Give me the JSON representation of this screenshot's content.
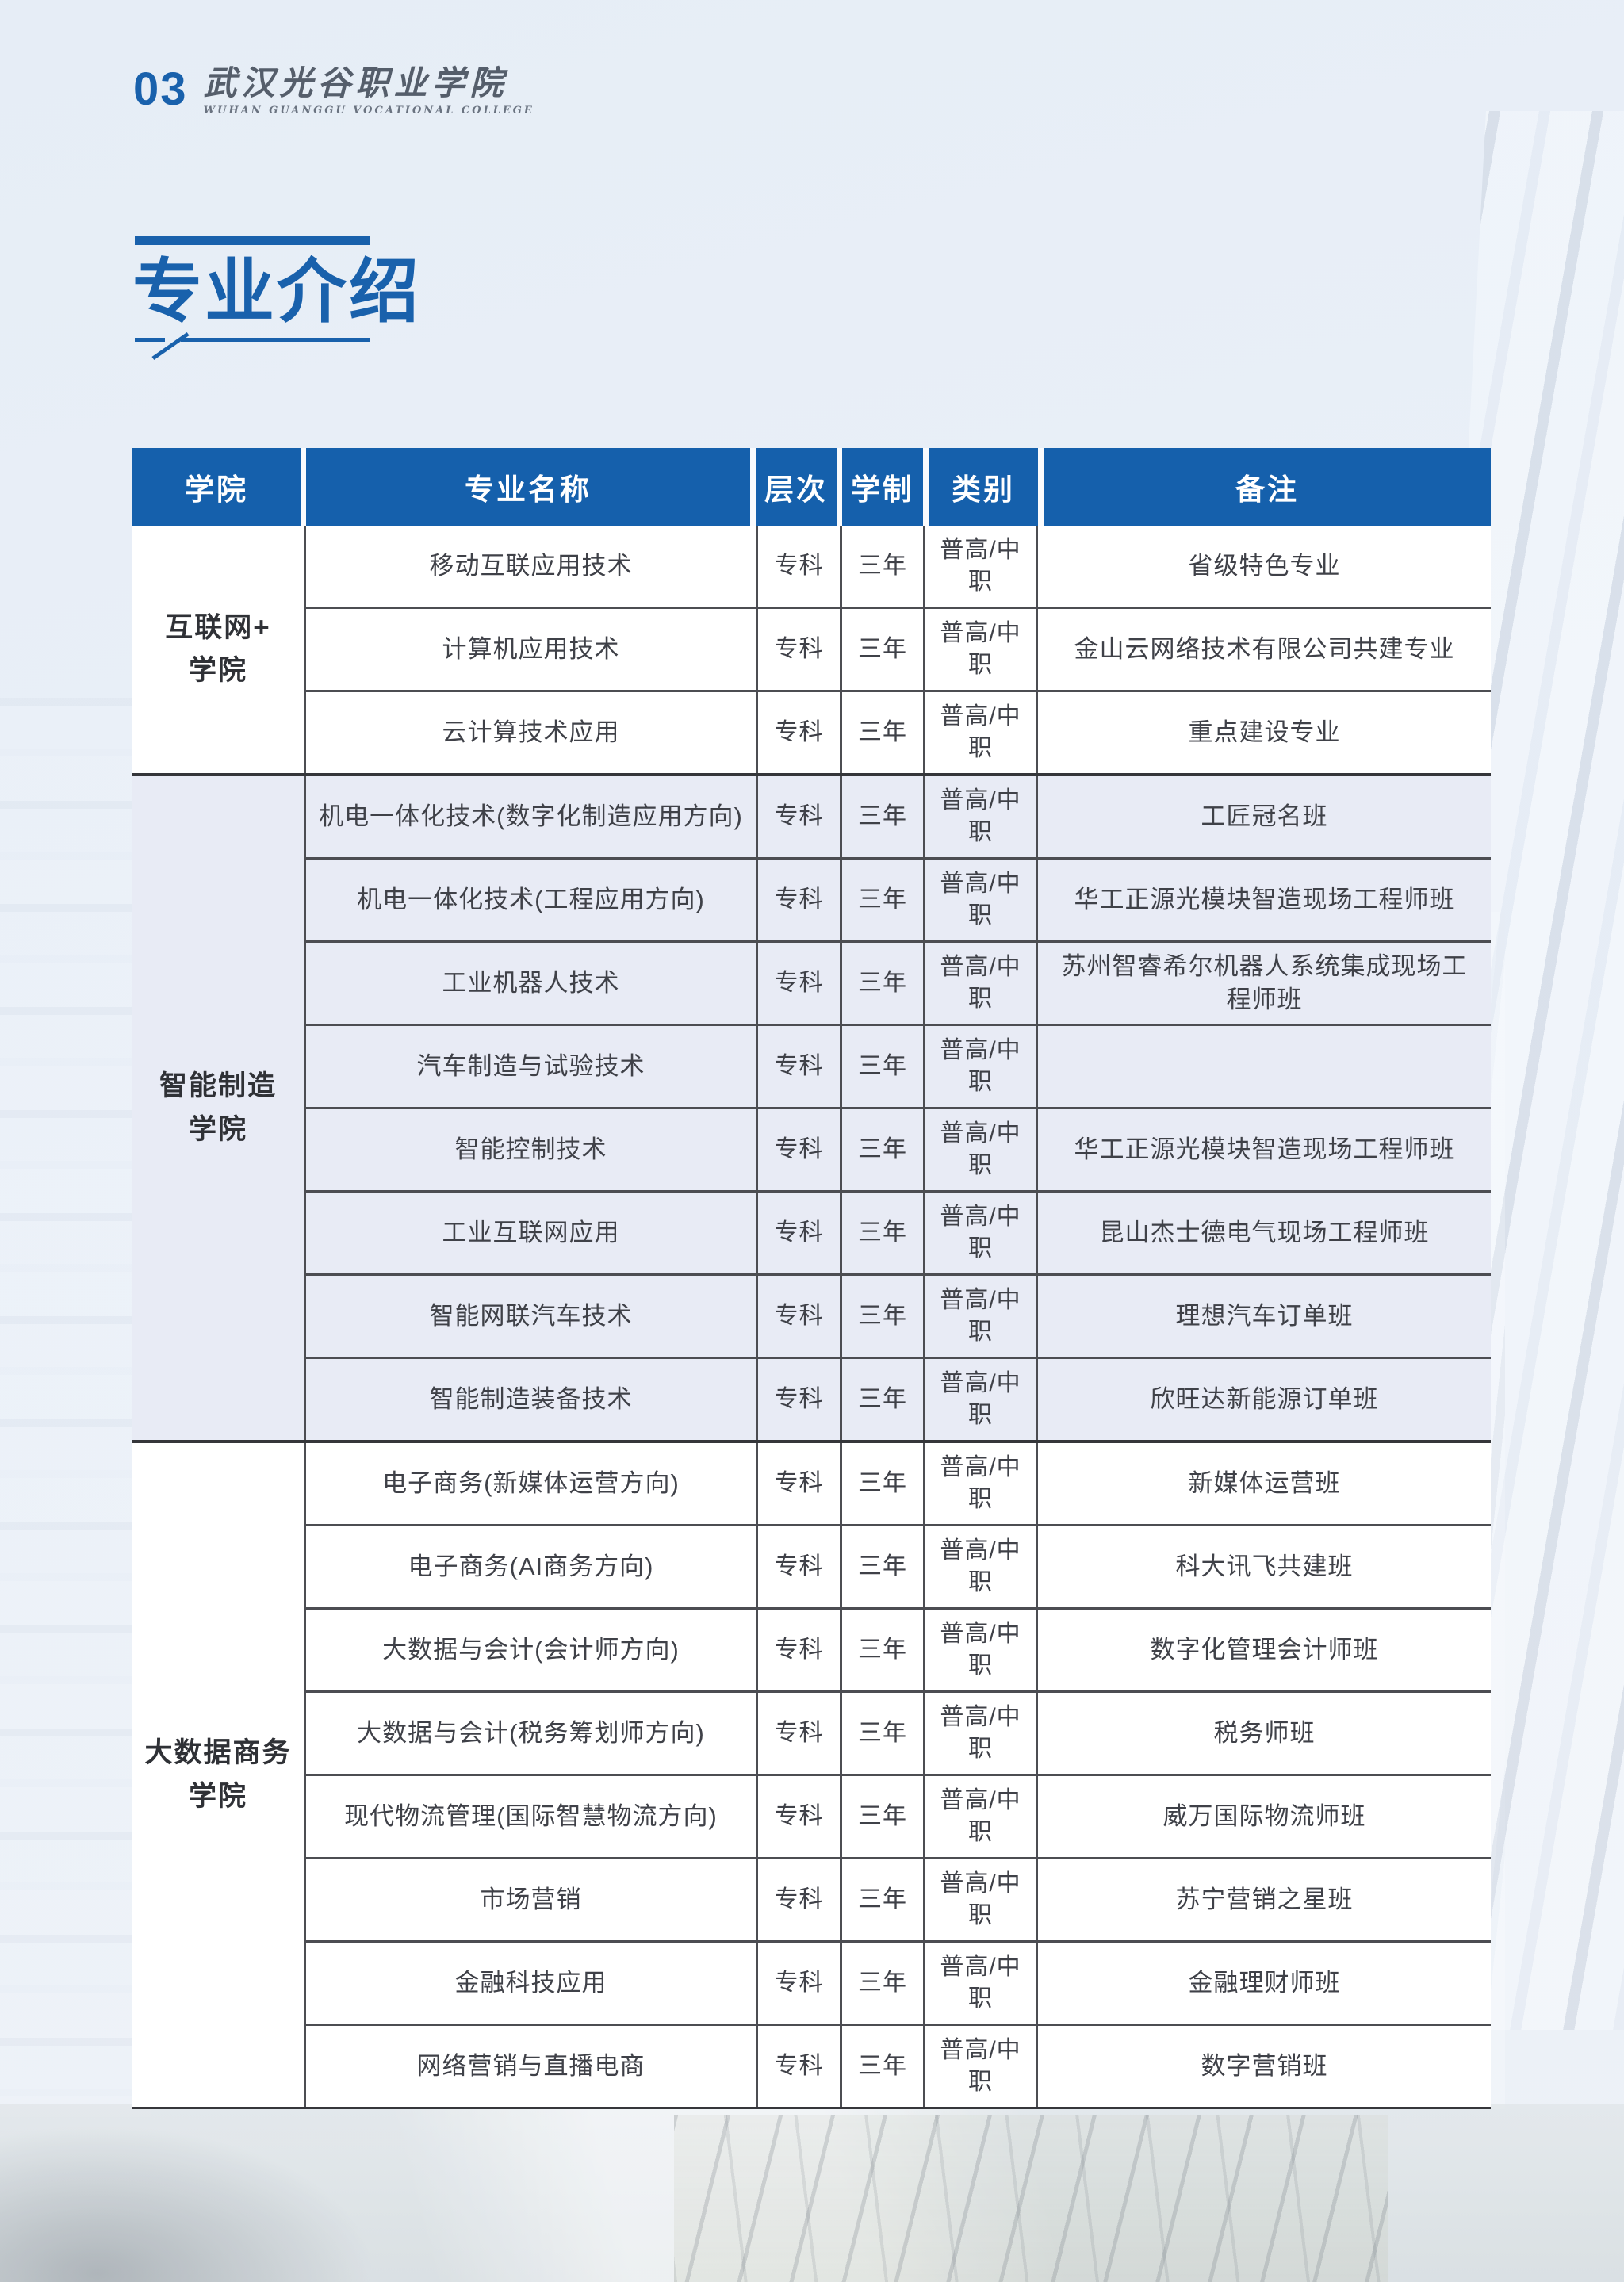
{
  "page": {
    "number": "03",
    "school_name": "武汉光谷职业学院",
    "school_name_en": "WUHAN GUANGGU VOCATIONAL COLLEGE",
    "title": "专业介绍"
  },
  "colors": {
    "accent": "#1961ac",
    "headerBg": "#1560ac",
    "headerText": "#ffffff",
    "altRowBg": "#e8ebf5",
    "rowBg": "#ffffff",
    "bodyText": "#3f4148",
    "gridLine": "#4c4d52",
    "sectionLine": "#35363a",
    "pageBg": "#e9eff7"
  },
  "table": {
    "headers": [
      "学院",
      "专业名称",
      "层次",
      "学制",
      "类别",
      "备注"
    ],
    "sections": [
      {
        "college": "互联网+\n学院",
        "rows": [
          {
            "major": "移动互联应用技术",
            "level": "专科",
            "duration": "三年",
            "category": "普高/中职",
            "note": "省级特色专业"
          },
          {
            "major": "计算机应用技术",
            "level": "专科",
            "duration": "三年",
            "category": "普高/中职",
            "note": "金山云网络技术有限公司共建专业"
          },
          {
            "major": "云计算技术应用",
            "level": "专科",
            "duration": "三年",
            "category": "普高/中职",
            "note": "重点建设专业"
          }
        ]
      },
      {
        "college": "智能制造\n学院",
        "rows": [
          {
            "major": "机电一体化技术(数字化制造应用方向)",
            "level": "专科",
            "duration": "三年",
            "category": "普高/中职",
            "note": "工匠冠名班"
          },
          {
            "major": "机电一体化技术(工程应用方向)",
            "level": "专科",
            "duration": "三年",
            "category": "普高/中职",
            "note": "华工正源光模块智造现场工程师班"
          },
          {
            "major": "工业机器人技术",
            "level": "专科",
            "duration": "三年",
            "category": "普高/中职",
            "note": "苏州智睿希尔机器人系统集成现场工程师班"
          },
          {
            "major": "汽车制造与试验技术",
            "level": "专科",
            "duration": "三年",
            "category": "普高/中职",
            "note": ""
          },
          {
            "major": "智能控制技术",
            "level": "专科",
            "duration": "三年",
            "category": "普高/中职",
            "note": "华工正源光模块智造现场工程师班"
          },
          {
            "major": "工业互联网应用",
            "level": "专科",
            "duration": "三年",
            "category": "普高/中职",
            "note": "昆山杰士德电气现场工程师班"
          },
          {
            "major": "智能网联汽车技术",
            "level": "专科",
            "duration": "三年",
            "category": "普高/中职",
            "note": "理想汽车订单班"
          },
          {
            "major": "智能制造装备技术",
            "level": "专科",
            "duration": "三年",
            "category": "普高/中职",
            "note": "欣旺达新能源订单班"
          }
        ]
      },
      {
        "college": "大数据商务\n学院",
        "rows": [
          {
            "major": "电子商务(新媒体运营方向)",
            "level": "专科",
            "duration": "三年",
            "category": "普高/中职",
            "note": "新媒体运营班"
          },
          {
            "major": "电子商务(AI商务方向)",
            "level": "专科",
            "duration": "三年",
            "category": "普高/中职",
            "note": "科大讯飞共建班"
          },
          {
            "major": "大数据与会计(会计师方向)",
            "level": "专科",
            "duration": "三年",
            "category": "普高/中职",
            "note": "数字化管理会计师班"
          },
          {
            "major": "大数据与会计(税务筹划师方向)",
            "level": "专科",
            "duration": "三年",
            "category": "普高/中职",
            "note": "税务师班"
          },
          {
            "major": "现代物流管理(国际智慧物流方向)",
            "level": "专科",
            "duration": "三年",
            "category": "普高/中职",
            "note": "威万国际物流师班"
          },
          {
            "major": "市场营销",
            "level": "专科",
            "duration": "三年",
            "category": "普高/中职",
            "note": "苏宁营销之星班"
          },
          {
            "major": "金融科技应用",
            "level": "专科",
            "duration": "三年",
            "category": "普高/中职",
            "note": "金融理财师班"
          },
          {
            "major": "网络营销与直播电商",
            "level": "专科",
            "duration": "三年",
            "category": "普高/中职",
            "note": "数字营销班"
          }
        ]
      }
    ]
  }
}
